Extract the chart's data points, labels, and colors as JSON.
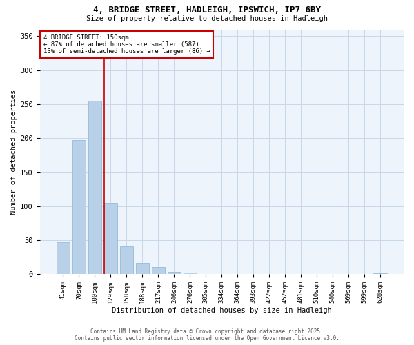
{
  "title_line1": "4, BRIDGE STREET, HADLEIGH, IPSWICH, IP7 6BY",
  "title_line2": "Size of property relative to detached houses in Hadleigh",
  "xlabel": "Distribution of detached houses by size in Hadleigh",
  "ylabel": "Number of detached properties",
  "categories": [
    "41sqm",
    "70sqm",
    "100sqm",
    "129sqm",
    "158sqm",
    "188sqm",
    "217sqm",
    "246sqm",
    "276sqm",
    "305sqm",
    "334sqm",
    "364sqm",
    "393sqm",
    "422sqm",
    "452sqm",
    "481sqm",
    "510sqm",
    "540sqm",
    "569sqm",
    "599sqm",
    "628sqm"
  ],
  "values": [
    47,
    197,
    255,
    105,
    41,
    17,
    11,
    4,
    3,
    0,
    0,
    0,
    0,
    0,
    0,
    0,
    0,
    0,
    0,
    0,
    2
  ],
  "bar_color": "#b8d0e8",
  "bar_edge_color": "#8ab4d4",
  "grid_color": "#c8d8e8",
  "bg_color": "#eef4fb",
  "annotation_text": "4 BRIDGE STREET: 150sqm\n← 87% of detached houses are smaller (587)\n13% of semi-detached houses are larger (86) →",
  "annotation_box_color": "#cc0000",
  "subject_line_bar_index": 3,
  "ylim": [
    0,
    360
  ],
  "yticks": [
    0,
    50,
    100,
    150,
    200,
    250,
    300,
    350
  ],
  "footer_line1": "Contains HM Land Registry data © Crown copyright and database right 2025.",
  "footer_line2": "Contains public sector information licensed under the Open Government Licence v3.0."
}
